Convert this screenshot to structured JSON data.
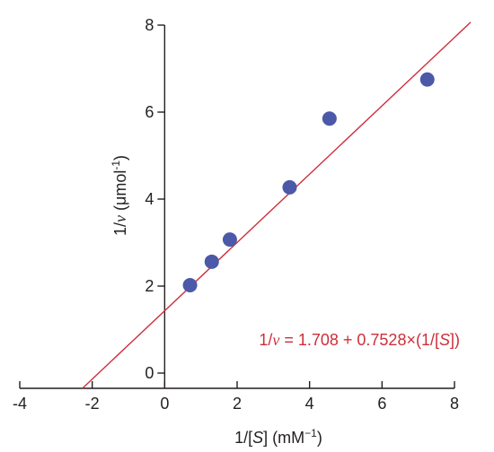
{
  "chart_data": {
    "type": "scatter",
    "title": "",
    "xlabel": {
      "prefix": "1/[",
      "var": "S",
      "mid": "] (mM",
      "sup": "−1",
      "suffix": ")"
    },
    "ylabel": {
      "prefix": "1/",
      "var": "ν",
      "mid": " (μmol",
      "sup": "-1",
      "suffix": ")"
    },
    "xlim": [
      -4,
      8
    ],
    "ylim": [
      0,
      8
    ],
    "xticks": [
      -4,
      -2,
      0,
      2,
      4,
      6,
      8
    ],
    "xtick_labels": [
      "-4",
      "-2",
      "0",
      "2",
      "4",
      "6",
      "8"
    ],
    "yticks": [
      0,
      2,
      4,
      6,
      8
    ],
    "ytick_labels": [
      "0",
      "2",
      "4",
      "6",
      "8"
    ],
    "grid": false,
    "series": [
      {
        "points": [
          {
            "x": 0.7,
            "y": 2.02
          },
          {
            "x": 1.3,
            "y": 2.56
          },
          {
            "x": 1.8,
            "y": 3.07
          },
          {
            "x": 3.45,
            "y": 4.27
          },
          {
            "x": 4.55,
            "y": 5.85
          },
          {
            "x": 7.25,
            "y": 6.75
          }
        ],
        "color": "#4b59a8"
      }
    ],
    "fit_line": {
      "intercept": 1.708,
      "slope": 0.7528,
      "color": "#cc2f3b",
      "equation": {
        "lhs_prefix": "1/",
        "lhs_var": "ν",
        "rhs_start": " = 1.708 + 0.7528×(1/[",
        "rhs_var": "S",
        "rhs_end": "])"
      }
    },
    "axis_color": "#231f20"
  }
}
